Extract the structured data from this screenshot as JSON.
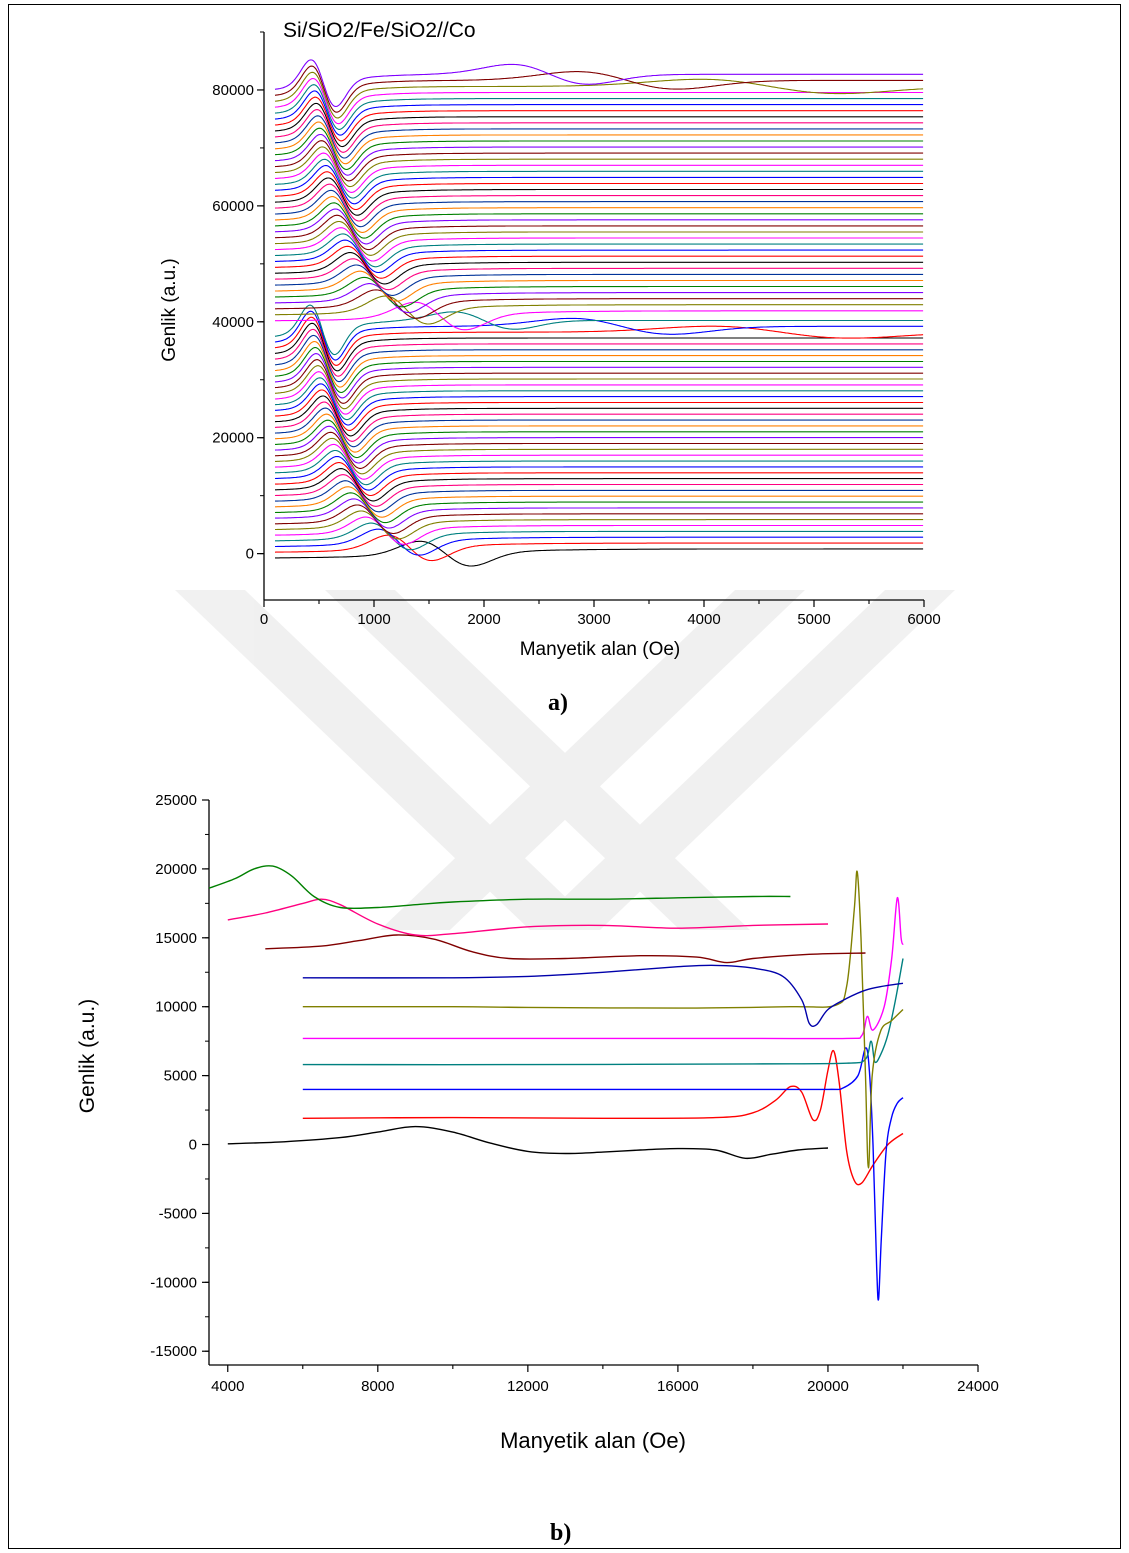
{
  "colors": {
    "watermark": "#ececec",
    "palette": [
      "#000000",
      "#ff0000",
      "#0000ff",
      "#008080",
      "#ff00ff",
      "#808000",
      "#800000",
      "#8000ff",
      "#008000",
      "#ff8000",
      "#003399",
      "#ff0080"
    ]
  },
  "captions": {
    "a": "a)",
    "b": "b)"
  },
  "chart_data": [
    {
      "type": "line",
      "title": "Si/SiO2/Fe/SiO2//Co",
      "xlabel": "Manyetik alan (Oe)",
      "ylabel": "Genlik (a.u.)",
      "xlim": [
        0,
        6000
      ],
      "ylim": [
        -8000,
        90000
      ],
      "x_ticks": [
        0,
        1000,
        2000,
        3000,
        4000,
        5000,
        6000
      ],
      "y_ticks": [
        0,
        20000,
        40000,
        60000,
        80000
      ],
      "grid": false,
      "legend": "none",
      "x_range": [
        100,
        6000
      ],
      "groups": [
        {
          "series_count": 40,
          "baseline_start": 0,
          "baseline_step": 990,
          "resonance_field_first": 1650,
          "resonance_field_last": 530,
          "peak_amplitude_first": 4500,
          "peak_amplitude_last": 9000,
          "wide_signals": [
            {
              "center": 2000,
              "amplitude": 2200,
              "width": 400
            },
            {
              "center": 3250,
              "amplitude": 2000,
              "width": 650
            },
            {
              "center": 4700,
              "amplitude": 1500,
              "width": 900
            }
          ]
        },
        {
          "series_count": 40,
          "baseline_start": 41000,
          "baseline_step": 1030,
          "resonance_field_first": 1600,
          "resonance_field_last": 540,
          "peak_amplitude_first": 5000,
          "peak_amplitude_last": 8500,
          "wide_signals": [
            {
              "center": 2600,
              "amplitude": 2500,
              "width": 500
            },
            {
              "center": 3300,
              "amplitude": 2200,
              "width": 650
            },
            {
              "center": 4600,
              "amplitude": 1800,
              "width": 900
            }
          ]
        }
      ]
    },
    {
      "type": "line",
      "title": "",
      "xlabel": "Manyetik alan (Oe)",
      "ylabel": "Genlik (a.u.)",
      "xlim": [
        3500,
        24000
      ],
      "ylim": [
        -16000,
        25000
      ],
      "x_ticks": [
        4000,
        8000,
        12000,
        16000,
        20000,
        24000
      ],
      "y_ticks": [
        -15000,
        -10000,
        -5000,
        0,
        5000,
        10000,
        15000,
        20000,
        25000
      ],
      "grid": false,
      "legend": "none",
      "series": [
        {
          "color": "#000000",
          "points": [
            [
              4000,
              50
            ],
            [
              5500,
              200
            ],
            [
              7000,
              500
            ],
            [
              8000,
              900
            ],
            [
              9000,
              1300
            ],
            [
              10000,
              900
            ],
            [
              11000,
              100
            ],
            [
              12000,
              -500
            ],
            [
              13000,
              -650
            ],
            [
              14000,
              -550
            ],
            [
              15000,
              -400
            ],
            [
              16000,
              -300
            ],
            [
              17000,
              -400
            ],
            [
              17800,
              -1000
            ],
            [
              18500,
              -700
            ],
            [
              19200,
              -400
            ],
            [
              20000,
              -250
            ]
          ]
        },
        {
          "color": "#ff0000",
          "points": [
            [
              6000,
              1900
            ],
            [
              10000,
              1950
            ],
            [
              14000,
              1900
            ],
            [
              17000,
              1950
            ],
            [
              18000,
              2300
            ],
            [
              18600,
              3200
            ],
            [
              19000,
              4200
            ],
            [
              19300,
              3800
            ],
            [
              19600,
              1800
            ],
            [
              19800,
              2500
            ],
            [
              20000,
              5400
            ],
            [
              20150,
              6800
            ],
            [
              20300,
              4500
            ],
            [
              20500,
              -500
            ],
            [
              20700,
              -2600
            ],
            [
              20900,
              -2800
            ],
            [
              21200,
              -1500
            ],
            [
              21600,
              0
            ],
            [
              22000,
              800
            ]
          ]
        },
        {
          "color": "#0000ff",
          "points": [
            [
              6000,
              4000
            ],
            [
              12000,
              4000
            ],
            [
              18000,
              4000
            ],
            [
              20000,
              4000
            ],
            [
              20400,
              4100
            ],
            [
              20800,
              5000
            ],
            [
              21000,
              7000
            ],
            [
              21100,
              5500
            ],
            [
              21200,
              0
            ],
            [
              21300,
              -9000
            ],
            [
              21350,
              -11200
            ],
            [
              21420,
              -7000
            ],
            [
              21550,
              -500
            ],
            [
              21700,
              2000
            ],
            [
              21850,
              3000
            ],
            [
              22000,
              3400
            ]
          ]
        },
        {
          "color": "#008080",
          "points": [
            [
              6000,
              5800
            ],
            [
              12000,
              5800
            ],
            [
              18000,
              5850
            ],
            [
              20500,
              5900
            ],
            [
              21000,
              6200
            ],
            [
              21150,
              7500
            ],
            [
              21250,
              6000
            ],
            [
              21400,
              6500
            ],
            [
              21600,
              8000
            ],
            [
              21800,
              10500
            ],
            [
              22000,
              13500
            ]
          ]
        },
        {
          "color": "#ff00ff",
          "points": [
            [
              6000,
              7700
            ],
            [
              12000,
              7700
            ],
            [
              18000,
              7700
            ],
            [
              20500,
              7700
            ],
            [
              20900,
              7900
            ],
            [
              21050,
              9300
            ],
            [
              21200,
              8300
            ],
            [
              21500,
              10000
            ],
            [
              21700,
              13500
            ],
            [
              21850,
              17900
            ],
            [
              21950,
              15000
            ],
            [
              22000,
              14500
            ]
          ]
        },
        {
          "color": "#808000",
          "points": [
            [
              6000,
              10000
            ],
            [
              10000,
              10000
            ],
            [
              12000,
              9950
            ],
            [
              16000,
              9900
            ],
            [
              19000,
              10000
            ],
            [
              20200,
              10100
            ],
            [
              20500,
              11500
            ],
            [
              20700,
              17000
            ],
            [
              20780,
              19800
            ],
            [
              20880,
              15000
            ],
            [
              21000,
              5000
            ],
            [
              21080,
              -1700
            ],
            [
              21180,
              5000
            ],
            [
              21400,
              8200
            ],
            [
              21700,
              9000
            ],
            [
              22000,
              9800
            ]
          ]
        },
        {
          "color": "#0000aa",
          "points": [
            [
              6000,
              12100
            ],
            [
              10000,
              12100
            ],
            [
              12000,
              12200
            ],
            [
              14000,
              12500
            ],
            [
              16000,
              12900
            ],
            [
              17000,
              13000
            ],
            [
              18000,
              12800
            ],
            [
              18800,
              12200
            ],
            [
              19300,
              10500
            ],
            [
              19500,
              8800
            ],
            [
              19700,
              8700
            ],
            [
              20000,
              9800
            ],
            [
              20500,
              10600
            ],
            [
              21000,
              11200
            ],
            [
              21500,
              11500
            ],
            [
              22000,
              11700
            ]
          ]
        },
        {
          "color": "#800000",
          "points": [
            [
              5000,
              14200
            ],
            [
              6500,
              14400
            ],
            [
              7500,
              14800
            ],
            [
              8500,
              15200
            ],
            [
              9500,
              14900
            ],
            [
              10500,
              14000
            ],
            [
              11500,
              13500
            ],
            [
              13000,
              13500
            ],
            [
              15000,
              13700
            ],
            [
              16500,
              13600
            ],
            [
              17300,
              13200
            ],
            [
              18000,
              13500
            ],
            [
              19500,
              13800
            ],
            [
              21000,
              13900
            ]
          ]
        },
        {
          "color": "#ff0080",
          "points": [
            [
              4000,
              16300
            ],
            [
              5000,
              16800
            ],
            [
              6000,
              17500
            ],
            [
              6500,
              17800
            ],
            [
              7000,
              17400
            ],
            [
              8000,
              16000
            ],
            [
              9000,
              15200
            ],
            [
              10000,
              15300
            ],
            [
              12000,
              15800
            ],
            [
              14000,
              15900
            ],
            [
              16000,
              15700
            ],
            [
              18000,
              15900
            ],
            [
              20000,
              16000
            ]
          ]
        },
        {
          "color": "#008000",
          "points": [
            [
              3500,
              18600
            ],
            [
              4200,
              19300
            ],
            [
              4700,
              20000
            ],
            [
              5200,
              20200
            ],
            [
              5700,
              19500
            ],
            [
              6300,
              18000
            ],
            [
              7000,
              17200
            ],
            [
              8000,
              17200
            ],
            [
              9000,
              17400
            ],
            [
              10000,
              17600
            ],
            [
              12000,
              17800
            ],
            [
              14000,
              17800
            ],
            [
              16000,
              17900
            ],
            [
              18000,
              18000
            ],
            [
              19000,
              18000
            ]
          ]
        }
      ]
    }
  ]
}
